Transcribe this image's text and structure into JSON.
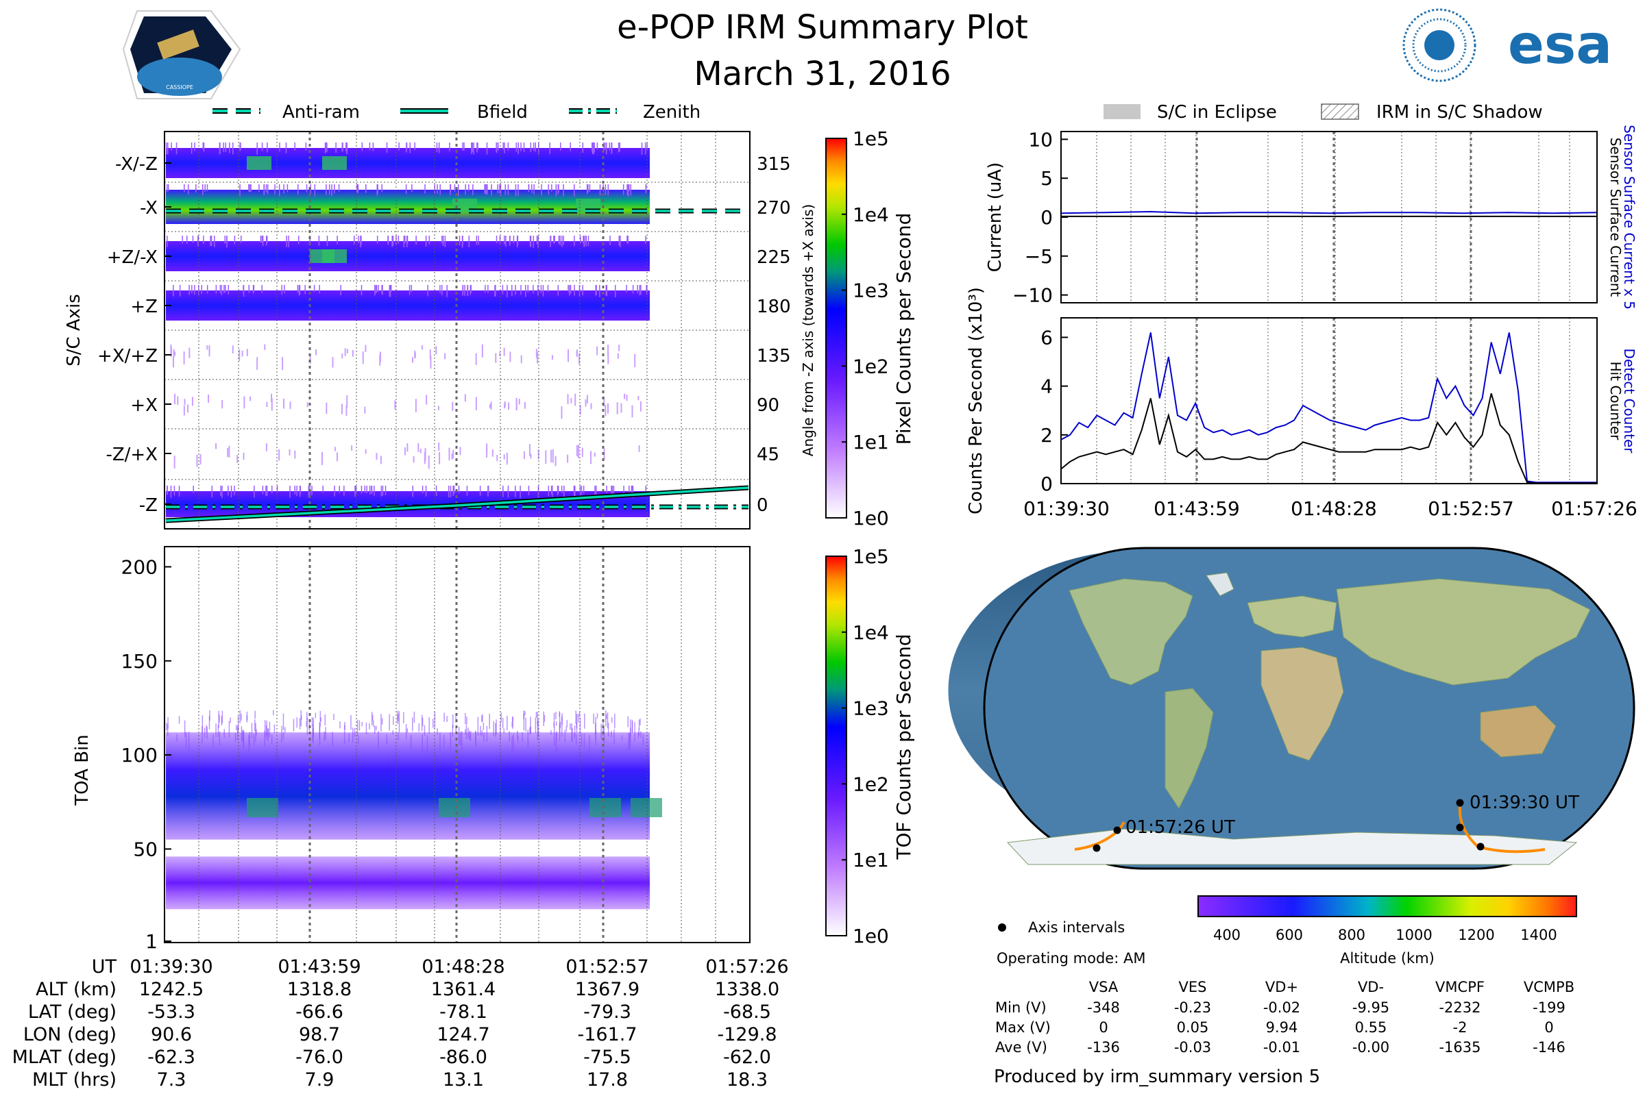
{
  "header": {
    "title": "e-POP IRM Summary Plot",
    "date": "March 31, 2016",
    "logo_left_text": "CASSIOPE",
    "logo_right_text": "esa"
  },
  "legend_top_left": [
    {
      "label": "Anti-ram",
      "style": "dashed"
    },
    {
      "label": "Bfield",
      "style": "solid"
    },
    {
      "label": "Zenith",
      "style": "dashdot"
    }
  ],
  "legend_top_right": [
    {
      "label": "S/C in Eclipse",
      "style": "gray-fill"
    },
    {
      "label": "IRM in S/C Shadow",
      "style": "hatch"
    }
  ],
  "colors": {
    "guide_line": "#00d9b0",
    "detect_counter": "#0000cc",
    "hit_counter": "#000000",
    "sensor_current_x5": "#0000cc",
    "track": "#ff8c00"
  },
  "time_ticks": [
    "01:39:30",
    "01:43:59",
    "01:48:28",
    "01:52:57",
    "01:57:26"
  ],
  "chart_data": [
    {
      "type": "heatmap",
      "name": "pixel-panel",
      "ylabel": "S/C Axis",
      "ylabel_right": "Angle from -Z axis (towards +X axis)",
      "left_ticks": [
        "-X/-Z",
        "-X",
        "+Z/-X",
        "+Z",
        "+X/+Z",
        "+X",
        "-Z/+X",
        "-Z"
      ],
      "right_ticks": [
        "315",
        "270",
        "225",
        "180",
        "135",
        "90",
        "45",
        "0"
      ],
      "ylim": [
        0,
        360
      ],
      "colorbar": {
        "label": "Pixel Counts per Second",
        "ticks": [
          "1e5",
          "1e4",
          "1e3",
          "1e2",
          "1e1",
          "1e0"
        ],
        "scale": "log"
      },
      "lines": [
        {
          "name": "Anti-ram",
          "x": [
            "01:39:30",
            "01:57:26"
          ],
          "y": [
            270,
            270
          ]
        },
        {
          "name": "Bfield",
          "x": [
            "01:39:30",
            "01:48:28",
            "01:57:26"
          ],
          "y": [
            -10,
            5,
            18
          ]
        },
        {
          "name": "Zenith",
          "x": [
            "01:39:30",
            "01:57:26"
          ],
          "y": [
            0,
            0
          ]
        }
      ]
    },
    {
      "type": "heatmap",
      "name": "tof-panel",
      "ylabel": "TOA Bin",
      "yticks": [
        "200",
        "150",
        "100",
        "50",
        "1"
      ],
      "ylim": [
        1,
        210
      ],
      "colorbar": {
        "label": "TOF Counts per Second",
        "ticks": [
          "1e5",
          "1e4",
          "1e3",
          "1e2",
          "1e1",
          "1e0"
        ],
        "scale": "log"
      },
      "bands": [
        {
          "from": 55,
          "to": 110,
          "peak": 72
        },
        {
          "from": 20,
          "to": 45,
          "peak": 30
        }
      ]
    },
    {
      "type": "line",
      "name": "current-panel",
      "ylabel": "Current (uA)",
      "yticks": [
        "10",
        "5",
        "0",
        "−5",
        "−10"
      ],
      "ylim": [
        -11,
        11
      ],
      "right_labels": [
        "Sensor Surface Current x 5",
        "Sensor Surface Current"
      ],
      "series": [
        {
          "name": "Sensor Surface Current x 5",
          "values": [
            0.5,
            0.6,
            0.7,
            0.5,
            0.6,
            0.6,
            0.5,
            0.6,
            0.6,
            0.5,
            0.6,
            0.5,
            0.6
          ]
        },
        {
          "name": "Sensor Surface Current",
          "values": [
            0.1,
            0.1,
            0.1,
            0.1,
            0.1,
            0.1,
            0.1,
            0.1,
            0.1,
            0.1,
            0.1,
            0.1,
            0.1
          ]
        }
      ]
    },
    {
      "type": "line",
      "name": "counts-panel",
      "ylabel": "Counts Per Second (x10³)",
      "yticks": [
        "6",
        "4",
        "2",
        "0"
      ],
      "ylim": [
        0,
        6.8
      ],
      "right_labels": [
        "Detect Counter",
        "Hit Counter"
      ],
      "x": [
        0,
        0.3,
        0.6,
        0.9,
        1.2,
        1.5,
        1.8,
        2.1,
        2.4,
        2.7,
        3.0,
        3.3,
        3.6,
        3.9,
        4.2,
        4.5,
        4.8,
        5.1,
        5.4,
        5.7,
        6.0,
        6.3,
        6.6,
        6.9,
        7.2,
        7.5,
        7.8,
        8.1,
        8.4,
        8.7,
        9.0,
        9.3,
        9.6,
        9.9,
        10.2,
        10.5,
        10.8,
        11.1,
        11.4,
        11.7,
        12.0,
        12.3,
        12.6,
        12.9,
        13.2,
        13.5,
        13.8,
        14.1,
        14.4,
        14.7,
        15.0,
        15.3,
        15.6,
        15.9,
        16.2,
        16.5,
        16.8,
        17.1,
        17.4,
        17.7,
        17.94
      ],
      "series": [
        {
          "name": "Detect Counter",
          "values": [
            1.8,
            2.0,
            2.5,
            2.3,
            2.8,
            2.6,
            2.4,
            2.9,
            2.7,
            4.5,
            6.2,
            3.5,
            5.2,
            2.8,
            2.6,
            3.3,
            2.3,
            2.1,
            2.2,
            2.0,
            2.1,
            2.2,
            2.0,
            2.1,
            2.3,
            2.4,
            2.6,
            3.2,
            3.0,
            2.8,
            2.6,
            2.5,
            2.4,
            2.3,
            2.2,
            2.4,
            2.5,
            2.6,
            2.7,
            2.6,
            2.6,
            2.7,
            4.3,
            3.5,
            4.0,
            3.2,
            2.8,
            3.5,
            5.8,
            4.5,
            6.2,
            3.8,
            0.1,
            0.05,
            0.05,
            0.05,
            0.05,
            0.05,
            0.05,
            0.05,
            0.05
          ]
        },
        {
          "name": "Hit Counter",
          "values": [
            0.6,
            0.9,
            1.1,
            1.2,
            1.3,
            1.2,
            1.3,
            1.4,
            1.2,
            2.2,
            3.5,
            1.6,
            2.8,
            1.3,
            1.1,
            1.4,
            1.0,
            1.0,
            1.1,
            1.0,
            1.0,
            1.1,
            1.0,
            1.0,
            1.2,
            1.3,
            1.4,
            1.7,
            1.6,
            1.5,
            1.4,
            1.3,
            1.3,
            1.3,
            1.3,
            1.4,
            1.4,
            1.4,
            1.4,
            1.5,
            1.4,
            1.5,
            2.5,
            2.0,
            2.5,
            1.9,
            1.5,
            2.0,
            3.7,
            2.4,
            2.0,
            0.9,
            0.05,
            0.02,
            0.02,
            0.02,
            0.02,
            0.02,
            0.02,
            0.02,
            0.02
          ]
        }
      ]
    }
  ],
  "map": {
    "labels": [
      "01:39:30 UT",
      "01:57:26 UT"
    ],
    "legend": "Axis intervals",
    "operating_mode": "Operating mode: AM",
    "colorbar": {
      "label": "Altitude (km)",
      "ticks": [
        "400",
        "600",
        "800",
        "1000",
        "1200",
        "1400"
      ]
    }
  },
  "ut_table": {
    "row_labels": [
      "UT",
      "ALT (km)",
      "LAT (deg)",
      "LON (deg)",
      "MLAT (deg)",
      "MLT (hrs)"
    ],
    "columns": [
      [
        "01:39:30",
        "1242.5",
        "-53.3",
        "90.6",
        "-62.3",
        "7.3"
      ],
      [
        "01:43:59",
        "1318.8",
        "-66.6",
        "98.7",
        "-76.0",
        "7.9"
      ],
      [
        "01:48:28",
        "1361.4",
        "-78.1",
        "124.7",
        "-86.0",
        "13.1"
      ],
      [
        "01:52:57",
        "1367.9",
        "-79.3",
        "-161.7",
        "-75.5",
        "17.8"
      ],
      [
        "01:57:26",
        "1338.0",
        "-68.5",
        "-129.8",
        "-62.0",
        "18.3"
      ]
    ]
  },
  "voltage_table": {
    "headers": [
      "VSA",
      "VES",
      "VD+",
      "VD-",
      "VMCPF",
      "VCMPB"
    ],
    "rows": [
      {
        "label": "Min (V)",
        "values": [
          "-348",
          "-0.23",
          "-0.02",
          "-9.95",
          "-2232",
          "-199"
        ]
      },
      {
        "label": "Max (V)",
        "values": [
          "0",
          "0.05",
          "9.94",
          "0.55",
          "-2",
          "0"
        ]
      },
      {
        "label": "Ave (V)",
        "values": [
          "-136",
          "-0.03",
          "-0.01",
          "-0.00",
          "-1635",
          "-146"
        ]
      }
    ]
  },
  "footer": "Produced by irm_summary version 5"
}
